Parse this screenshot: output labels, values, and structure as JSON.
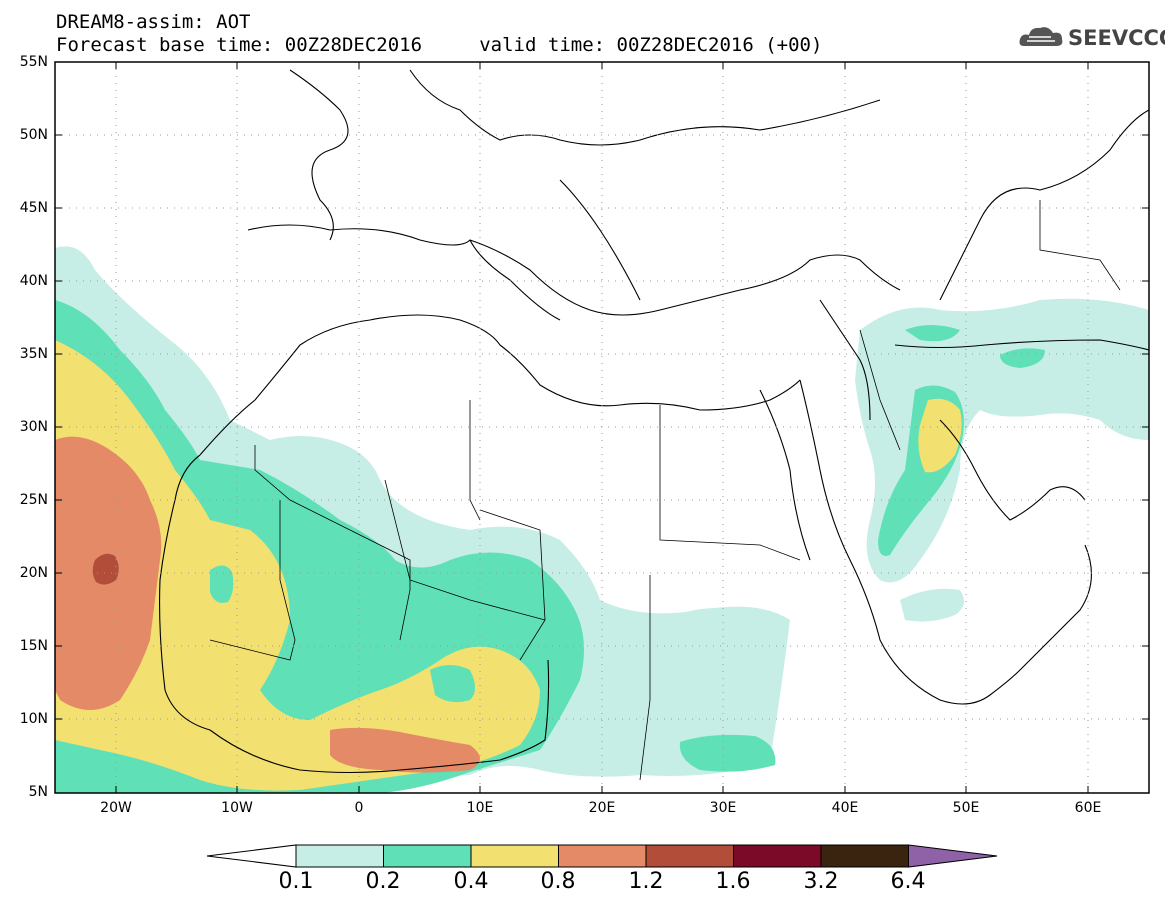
{
  "header": {
    "title_line1": "DREAM8-assim: AOT",
    "title_line2": "Forecast base time: 00Z28DEC2016     valid time: 00Z28DEC2016 (+00)"
  },
  "logo": {
    "text": "SEEVCCC",
    "icon": "cloud-icon"
  },
  "map": {
    "lat_range": [
      5,
      55
    ],
    "lon_range": [
      -25,
      65
    ],
    "lat_labels": [
      "55N",
      "50N",
      "45N",
      "40N",
      "35N",
      "30N",
      "25N",
      "20N",
      "15N",
      "10N",
      "5N"
    ],
    "lon_labels": [
      "20W",
      "10W",
      "0",
      "10E",
      "20E",
      "30E",
      "40E",
      "50E",
      "60E"
    ],
    "grid": "dotted"
  },
  "colorbar": {
    "levels": [
      "0.1",
      "0.2",
      "0.4",
      "0.8",
      "1.2",
      "1.6",
      "3.2",
      "6.4"
    ],
    "colors": [
      "#ffffff",
      "#c6eee6",
      "#5fe0b6",
      "#f2e070",
      "#e58a66",
      "#b24d3a",
      "#7a0a28",
      "#3a2410",
      "#8f62a8"
    ]
  }
}
